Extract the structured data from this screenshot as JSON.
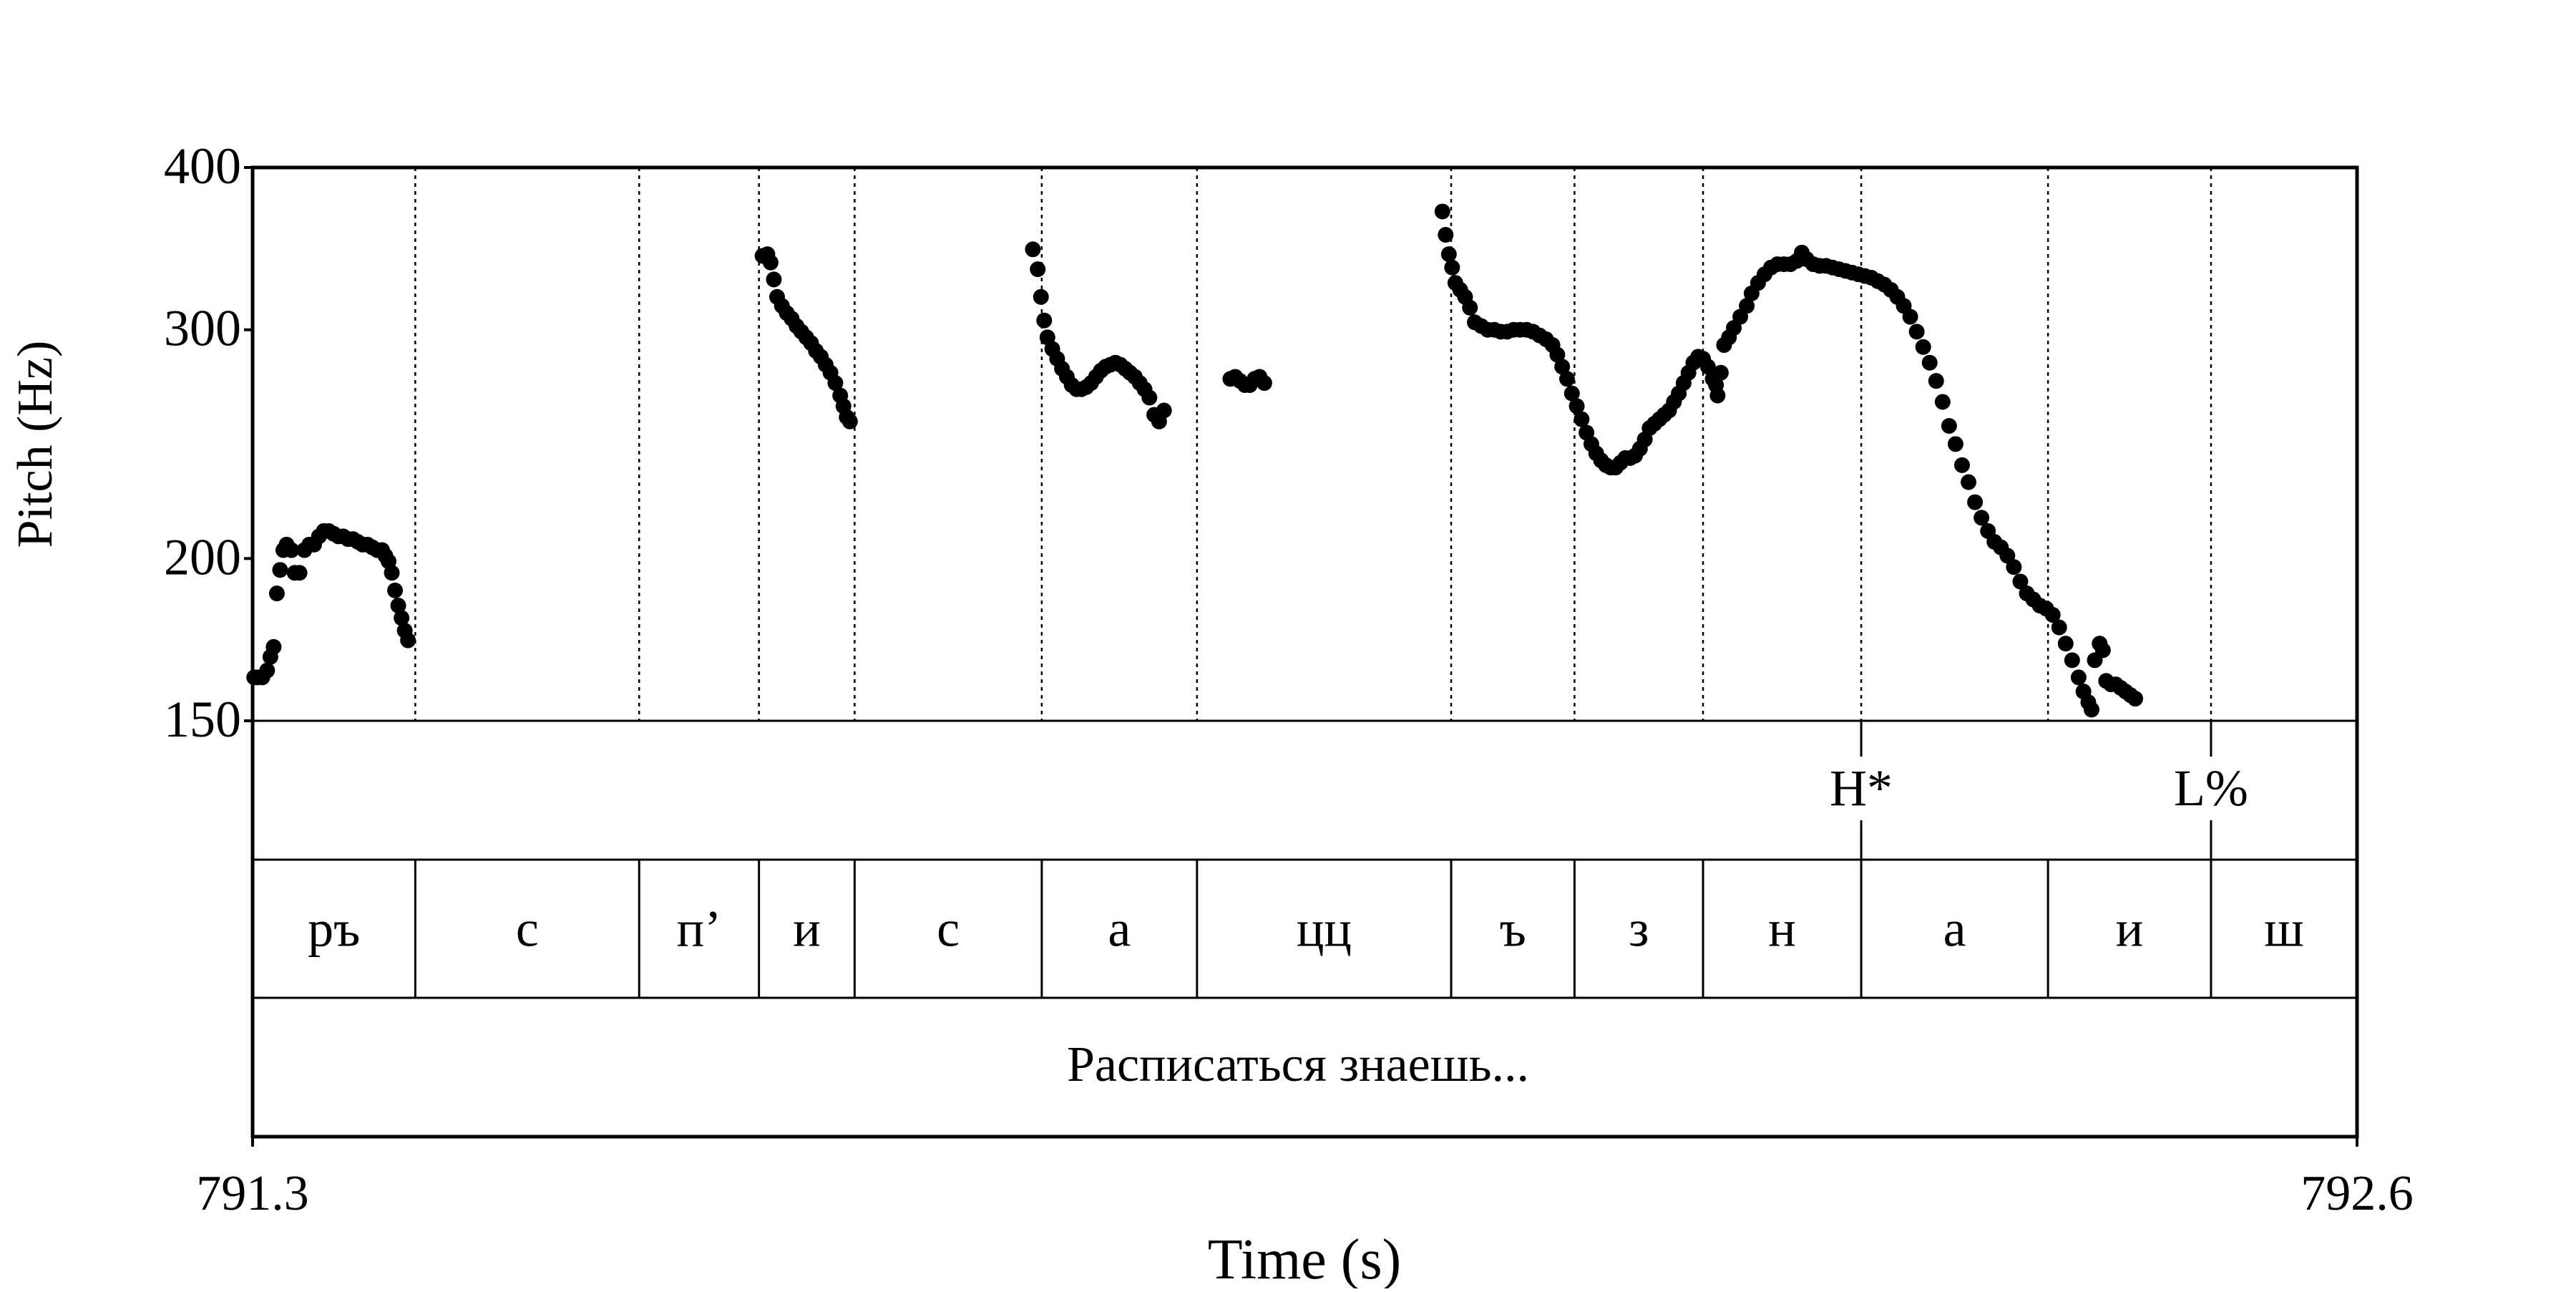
{
  "chart_data": {
    "type": "scatter",
    "title": "",
    "xlabel": "Time (s)",
    "ylabel": "Pitch (Hz)",
    "xlim": [
      791.3,
      792.6
    ],
    "ylim": [
      150,
      400
    ],
    "yscale": "log",
    "x_tick_labels": [
      "791.3",
      "792.6"
    ],
    "y_ticks": [
      {
        "value": 150,
        "label": "150"
      },
      {
        "value": 200,
        "label": "200"
      },
      {
        "value": 300,
        "label": "300"
      },
      {
        "value": 400,
        "label": "400"
      }
    ],
    "grid": false,
    "marker_color": "#000000",
    "boundaries": [
      791.4005,
      791.5388,
      791.6128,
      791.6719,
      791.7875,
      791.8834,
      792.0404,
      792.1166,
      792.196,
      792.2937,
      792.4091,
      792.5098
    ],
    "tones": [
      {
        "label": "H*",
        "time": 792.2937
      },
      {
        "label": "L%",
        "time": 792.5098
      }
    ],
    "segments": [
      {
        "label": "ръ",
        "start": 791.3,
        "end": 791.4005
      },
      {
        "label": "с",
        "start": 791.4005,
        "end": 791.5388
      },
      {
        "label": "п’",
        "start": 791.5388,
        "end": 791.6128
      },
      {
        "label": "и",
        "start": 791.6128,
        "end": 791.6719
      },
      {
        "label": "с",
        "start": 791.6719,
        "end": 791.7875
      },
      {
        "label": "а",
        "start": 791.7875,
        "end": 791.8834
      },
      {
        "label": "цц",
        "start": 791.8834,
        "end": 792.0404
      },
      {
        "label": "ъ",
        "start": 792.0404,
        "end": 792.1166
      },
      {
        "label": "з",
        "start": 792.1166,
        "end": 792.196
      },
      {
        "label": "н",
        "start": 792.196,
        "end": 792.2937
      },
      {
        "label": "а",
        "start": 792.2937,
        "end": 792.4091
      },
      {
        "label": "и",
        "start": 792.4091,
        "end": 792.5098
      },
      {
        "label": "ш",
        "start": 792.5098,
        "end": 792.6
      }
    ],
    "utterance": "Расписаться знаешь...",
    "series": [
      {
        "values": [
          [
            791.301,
            162
          ],
          [
            791.303,
            162
          ],
          [
            791.306,
            162
          ],
          [
            791.309,
            164
          ],
          [
            791.311,
            168
          ],
          [
            791.313,
            171
          ],
          [
            791.315,
            188
          ],
          [
            791.317,
            196
          ],
          [
            791.319,
            203
          ],
          [
            791.321,
            205
          ],
          [
            791.324,
            203
          ],
          [
            791.326,
            195
          ],
          [
            791.329,
            195
          ],
          [
            791.332,
            203
          ],
          [
            791.335,
            205
          ],
          [
            791.338,
            205
          ],
          [
            791.341,
            208
          ],
          [
            791.344,
            210
          ],
          [
            791.347,
            210
          ],
          [
            791.35,
            209
          ],
          [
            791.353,
            208
          ],
          [
            791.356,
            208
          ],
          [
            791.359,
            207
          ],
          [
            791.362,
            207
          ],
          [
            791.365,
            206
          ],
          [
            791.368,
            205
          ],
          [
            791.371,
            205
          ],
          [
            791.374,
            204
          ],
          [
            791.377,
            203
          ],
          [
            791.38,
            203
          ],
          [
            791.382,
            201
          ],
          [
            791.384,
            199
          ],
          [
            791.386,
            195
          ],
          [
            791.388,
            189
          ],
          [
            791.39,
            184
          ],
          [
            791.392,
            180
          ],
          [
            791.394,
            176
          ],
          [
            791.396,
            173
          ]
        ]
      },
      {
        "values": [
          [
            791.615,
            342
          ],
          [
            791.618,
            343
          ],
          [
            791.62,
            338
          ],
          [
            791.622,
            328
          ],
          [
            791.624,
            318
          ],
          [
            791.627,
            313
          ],
          [
            791.63,
            309
          ],
          [
            791.633,
            306
          ],
          [
            791.636,
            302
          ],
          [
            791.639,
            299
          ],
          [
            791.642,
            296
          ],
          [
            791.645,
            293
          ],
          [
            791.648,
            289
          ],
          [
            791.651,
            286
          ],
          [
            791.654,
            282
          ],
          [
            791.657,
            278
          ],
          [
            791.66,
            273
          ],
          [
            791.663,
            267
          ],
          [
            791.665,
            262
          ],
          [
            791.667,
            257
          ],
          [
            791.669,
            255
          ]
        ]
      },
      {
        "values": [
          [
            791.782,
            346
          ],
          [
            791.785,
            334
          ],
          [
            791.787,
            318
          ],
          [
            791.789,
            305
          ],
          [
            791.791,
            296
          ],
          [
            791.794,
            290
          ],
          [
            791.797,
            285
          ],
          [
            791.8,
            280
          ],
          [
            791.803,
            276
          ],
          [
            791.806,
            272
          ],
          [
            791.809,
            270
          ],
          [
            791.812,
            270
          ],
          [
            791.815,
            271
          ],
          [
            791.818,
            273
          ],
          [
            791.821,
            276
          ],
          [
            791.824,
            279
          ],
          [
            791.827,
            281
          ],
          [
            791.83,
            282
          ],
          [
            791.833,
            283
          ],
          [
            791.836,
            282
          ],
          [
            791.839,
            280
          ],
          [
            791.842,
            278
          ],
          [
            791.845,
            276
          ],
          [
            791.848,
            273
          ],
          [
            791.851,
            270
          ],
          [
            791.854,
            266
          ],
          [
            791.857,
            258
          ],
          [
            791.86,
            255
          ],
          [
            791.863,
            260
          ]
        ]
      },
      {
        "values": [
          [
            791.904,
            275
          ],
          [
            791.907,
            276
          ],
          [
            791.91,
            274
          ],
          [
            791.913,
            272
          ],
          [
            791.916,
            272
          ],
          [
            791.919,
            275
          ],
          [
            791.922,
            276
          ],
          [
            791.925,
            273
          ]
        ]
      },
      {
        "values": [
          [
            792.035,
            370
          ],
          [
            792.037,
            355
          ],
          [
            792.039,
            343
          ],
          [
            792.041,
            335
          ],
          [
            792.043,
            326
          ],
          [
            792.046,
            322
          ],
          [
            792.049,
            318
          ],
          [
            792.052,
            312
          ],
          [
            792.055,
            304
          ],
          [
            792.059,
            302
          ],
          [
            792.063,
            300
          ],
          [
            792.067,
            300
          ],
          [
            792.071,
            299
          ],
          [
            792.075,
            299
          ],
          [
            792.079,
            300
          ],
          [
            792.083,
            300
          ],
          [
            792.087,
            300
          ],
          [
            792.091,
            299
          ],
          [
            792.095,
            297
          ],
          [
            792.099,
            295
          ],
          [
            792.103,
            292
          ],
          [
            792.106,
            287
          ],
          [
            792.109,
            281
          ],
          [
            792.112,
            275
          ],
          [
            792.115,
            268
          ],
          [
            792.118,
            262
          ],
          [
            792.121,
            256
          ],
          [
            792.124,
            250
          ],
          [
            792.127,
            245
          ],
          [
            792.13,
            241
          ],
          [
            792.133,
            238
          ],
          [
            792.136,
            236
          ],
          [
            792.139,
            235
          ],
          [
            792.142,
            235
          ],
          [
            792.145,
            237
          ],
          [
            792.148,
            239
          ],
          [
            792.151,
            239
          ],
          [
            792.154,
            240
          ],
          [
            792.157,
            243
          ],
          [
            792.16,
            247
          ],
          [
            792.163,
            252
          ],
          [
            792.166,
            254
          ],
          [
            792.169,
            256
          ],
          [
            792.172,
            258
          ],
          [
            792.175,
            260
          ],
          [
            792.178,
            264
          ],
          [
            792.181,
            268
          ],
          [
            792.184,
            273
          ],
          [
            792.187,
            278
          ],
          [
            792.19,
            283
          ],
          [
            792.193,
            286
          ],
          [
            792.196,
            285
          ],
          [
            792.199,
            281
          ],
          [
            792.202,
            275
          ],
          [
            792.204,
            272
          ],
          [
            792.207,
            278
          ],
          [
            792.205,
            267
          ],
          [
            792.209,
            292
          ],
          [
            792.212,
            296
          ],
          [
            792.215,
            301
          ],
          [
            792.219,
            307
          ],
          [
            792.223,
            313
          ],
          [
            792.226,
            320
          ],
          [
            792.23,
            326
          ],
          [
            792.234,
            331
          ],
          [
            792.238,
            335
          ],
          [
            792.242,
            337
          ],
          [
            792.246,
            337
          ],
          [
            792.25,
            337
          ],
          [
            792.254,
            339
          ],
          [
            792.257,
            344
          ],
          [
            792.26,
            340
          ],
          [
            792.264,
            337
          ],
          [
            792.268,
            336
          ],
          [
            792.272,
            336
          ],
          [
            792.276,
            335
          ],
          [
            792.28,
            334
          ],
          [
            792.284,
            333
          ],
          [
            792.288,
            332
          ],
          [
            792.292,
            331
          ],
          [
            792.296,
            330
          ],
          [
            792.3,
            329
          ],
          [
            792.304,
            327
          ],
          [
            792.308,
            325
          ],
          [
            792.312,
            322
          ],
          [
            792.316,
            318
          ],
          [
            792.32,
            313
          ],
          [
            792.324,
            307
          ],
          [
            792.328,
            299
          ],
          [
            792.332,
            291
          ],
          [
            792.336,
            283
          ],
          [
            792.34,
            274
          ],
          [
            792.344,
            264
          ],
          [
            792.348,
            253
          ],
          [
            792.352,
            245
          ],
          [
            792.356,
            236
          ],
          [
            792.36,
            229
          ],
          [
            792.364,
            221
          ],
          [
            792.368,
            215
          ],
          [
            792.372,
            210
          ],
          [
            792.376,
            206
          ],
          [
            792.38,
            204
          ],
          [
            792.384,
            201
          ],
          [
            792.388,
            197
          ],
          [
            792.392,
            192
          ],
          [
            792.396,
            188
          ],
          [
            792.4,
            186
          ],
          [
            792.404,
            184
          ],
          [
            792.408,
            183
          ],
          [
            792.412,
            181
          ],
          [
            792.416,
            177
          ],
          [
            792.42,
            172
          ],
          [
            792.424,
            167
          ],
          [
            792.428,
            162
          ],
          [
            792.431,
            158
          ],
          [
            792.434,
            155
          ],
          [
            792.436,
            153
          ],
          [
            792.438,
            167
          ],
          [
            792.441,
            172
          ],
          [
            792.443,
            170
          ],
          [
            792.445,
            161
          ],
          [
            792.448,
            160
          ],
          [
            792.451,
            160
          ],
          [
            792.454,
            159
          ],
          [
            792.457,
            158
          ],
          [
            792.46,
            157
          ],
          [
            792.463,
            156
          ]
        ]
      }
    ]
  }
}
